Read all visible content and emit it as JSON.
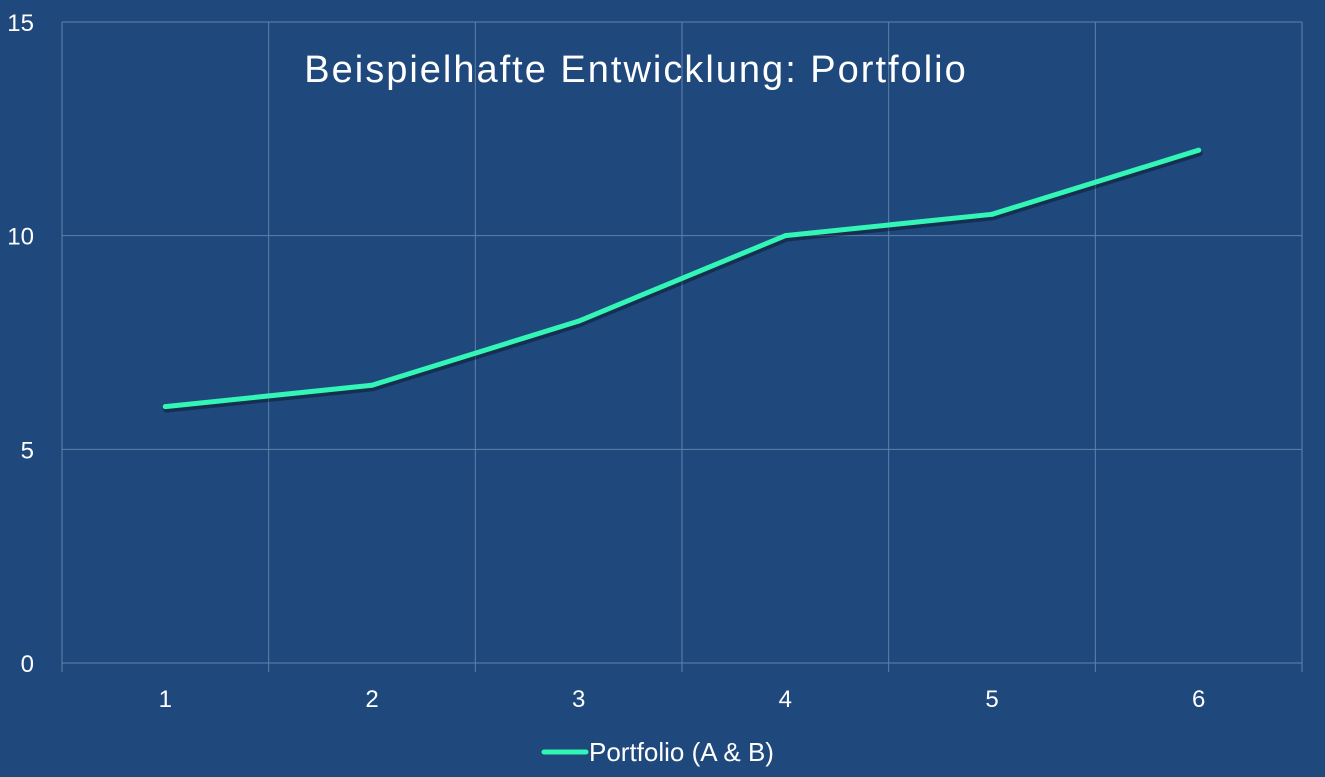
{
  "chart_data": {
    "type": "line",
    "title": "Beispielhafte Entwicklung: Portfolio",
    "categories": [
      "1",
      "2",
      "3",
      "4",
      "5",
      "6"
    ],
    "series": [
      {
        "name": "Portfolio (A & B)",
        "values": [
          6,
          6.5,
          8,
          10,
          10.5,
          12
        ],
        "color": "#33f5b5"
      }
    ],
    "ylim": [
      0,
      15
    ],
    "yticks": [
      0,
      5,
      10,
      15
    ],
    "grid": true,
    "legend_position": "bottom",
    "colors": {
      "background": "#1f497d",
      "grid": "#5f82aa",
      "text": "#ffffff"
    }
  }
}
